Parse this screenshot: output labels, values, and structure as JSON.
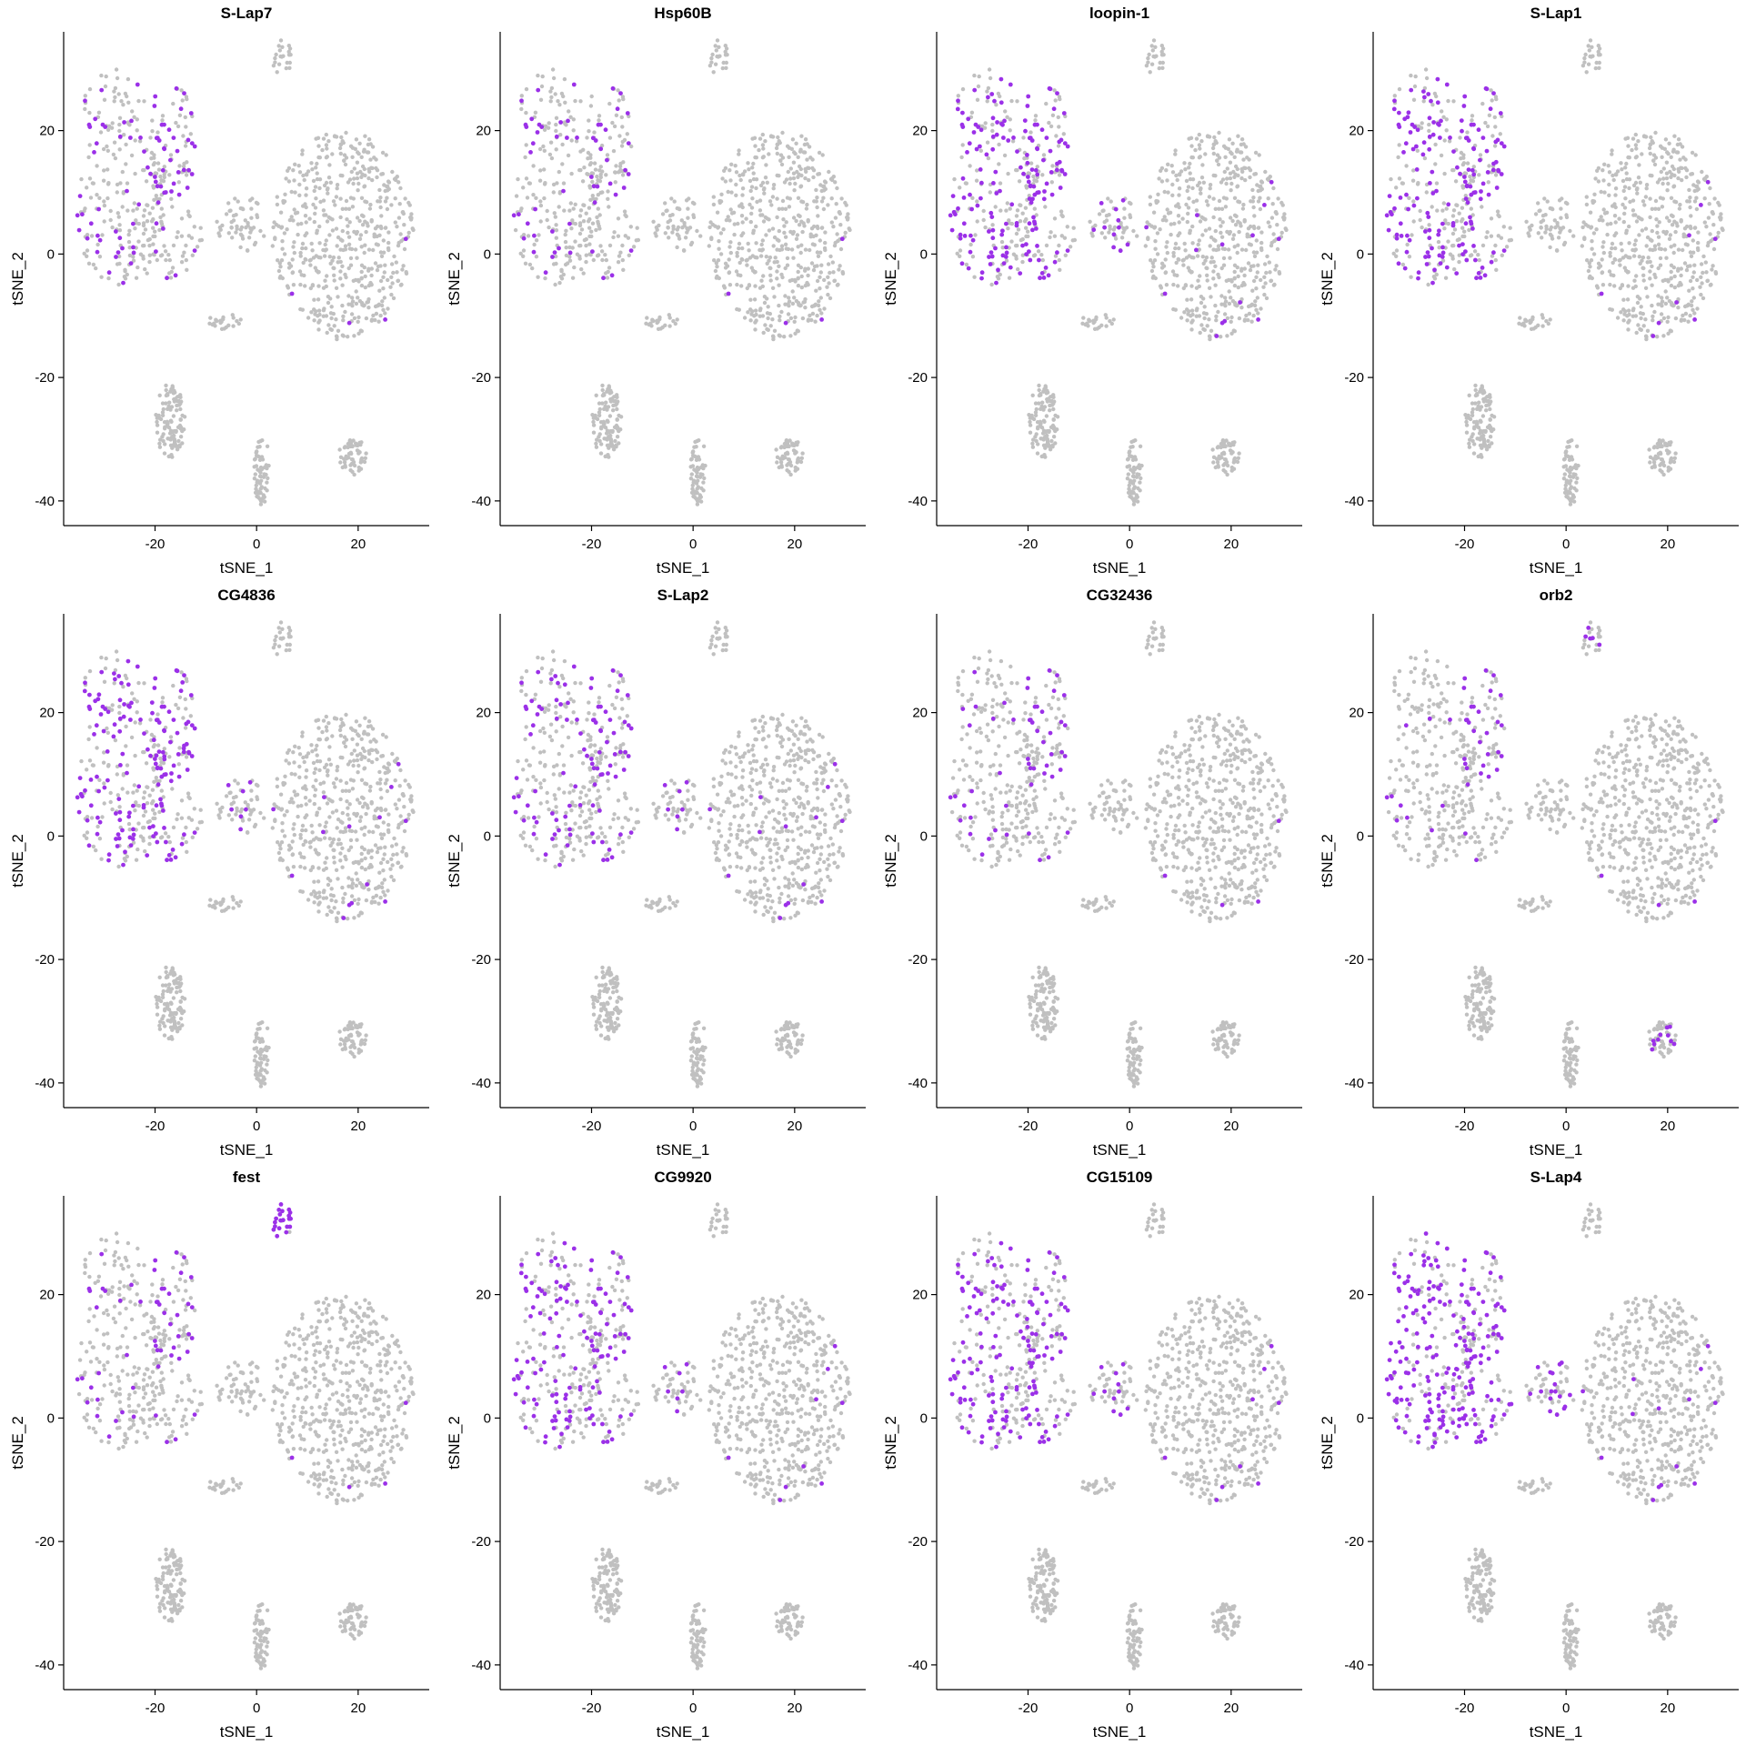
{
  "chart_data": {
    "type": "scatter",
    "layout": "small-multiples 3x4",
    "xlabel": "tSNE_1",
    "ylabel": "tSNE_2",
    "xlim": [
      -38,
      34
    ],
    "ylim": [
      -44,
      36
    ],
    "xticks": [
      -20,
      0,
      20
    ],
    "yticks": [
      -40,
      -20,
      0,
      20
    ],
    "grid": false,
    "legend": "none",
    "colors": {
      "background_cells": "#c0c0c0",
      "expressing_cells": "#9b30e8"
    },
    "cell_clusters": [
      {
        "id": "A",
        "cx": -27,
        "cy": 8,
        "rx": 9,
        "ry": 13,
        "n": 160
      },
      {
        "id": "B",
        "cx": -17,
        "cy": 18,
        "rx": 5,
        "ry": 10,
        "n": 90
      },
      {
        "id": "C",
        "cx": -18,
        "cy": 2,
        "rx": 8,
        "ry": 6,
        "n": 70
      },
      {
        "id": "D",
        "cx": -28,
        "cy": 24,
        "rx": 6,
        "ry": 6,
        "n": 50
      },
      {
        "id": "E",
        "cx": 5,
        "cy": 32,
        "rx": 2,
        "ry": 3,
        "n": 22
      },
      {
        "id": "F",
        "cx": -3,
        "cy": 5,
        "rx": 5,
        "ry": 5,
        "n": 55
      },
      {
        "id": "G",
        "cx": 17,
        "cy": 3,
        "rx": 14,
        "ry": 17,
        "n": 540
      },
      {
        "id": "H",
        "cx": -6,
        "cy": -11,
        "rx": 4,
        "ry": 1.2,
        "n": 22
      },
      {
        "id": "I",
        "cx": -17,
        "cy": -27,
        "rx": 3,
        "ry": 6,
        "n": 110
      },
      {
        "id": "J",
        "cx": 1,
        "cy": -35,
        "rx": 1.5,
        "ry": 6,
        "n": 65
      },
      {
        "id": "K",
        "cx": 19,
        "cy": -33,
        "rx": 3,
        "ry": 3,
        "n": 60
      }
    ],
    "panels": [
      {
        "title": "S-Lap7",
        "expression": {
          "A": 0.18,
          "B": 0.45,
          "C": 0.1,
          "D": 0.25,
          "G": 0.01
        }
      },
      {
        "title": "Hsp60B",
        "expression": {
          "A": 0.12,
          "B": 0.2,
          "C": 0.06,
          "D": 0.3,
          "G": 0.01
        }
      },
      {
        "title": "loopin-1",
        "expression": {
          "A": 0.45,
          "B": 0.55,
          "C": 0.35,
          "D": 0.5,
          "F": 0.15,
          "G": 0.03
        }
      },
      {
        "title": "S-Lap1",
        "expression": {
          "A": 0.4,
          "B": 0.55,
          "C": 0.3,
          "D": 0.55,
          "G": 0.02
        }
      },
      {
        "title": "CG4836",
        "expression": {
          "A": 0.35,
          "B": 0.6,
          "C": 0.3,
          "D": 0.55,
          "F": 0.1,
          "G": 0.03
        }
      },
      {
        "title": "S-Lap2",
        "expression": {
          "A": 0.2,
          "B": 0.45,
          "C": 0.2,
          "D": 0.4,
          "F": 0.1,
          "G": 0.03
        }
      },
      {
        "title": "CG32436",
        "expression": {
          "A": 0.08,
          "B": 0.3,
          "C": 0.05,
          "D": 0.12,
          "G": 0.01
        }
      },
      {
        "title": "orb2",
        "expression": {
          "A": 0.06,
          "B": 0.3,
          "C": 0.04,
          "E": 0.2,
          "G": 0.01,
          "K": 0.15
        }
      },
      {
        "title": "fest",
        "expression": {
          "A": 0.08,
          "B": 0.3,
          "C": 0.05,
          "D": 0.15,
          "E": 0.8,
          "G": 0.01
        }
      },
      {
        "title": "CG9920",
        "expression": {
          "A": 0.35,
          "B": 0.45,
          "C": 0.25,
          "D": 0.45,
          "F": 0.1,
          "G": 0.02
        }
      },
      {
        "title": "CG15109",
        "expression": {
          "A": 0.45,
          "B": 0.45,
          "C": 0.35,
          "D": 0.5,
          "F": 0.15,
          "G": 0.02
        }
      },
      {
        "title": "S-Lap4",
        "expression": {
          "A": 0.65,
          "B": 0.55,
          "C": 0.6,
          "D": 0.6,
          "F": 0.25,
          "G": 0.03
        }
      }
    ]
  }
}
